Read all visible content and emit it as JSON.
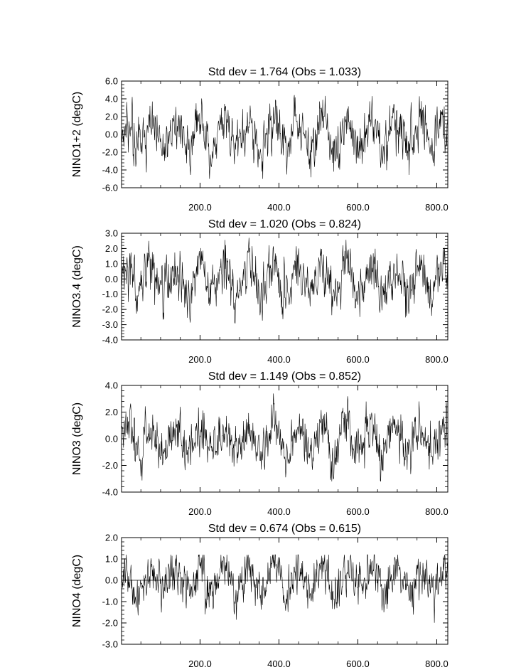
{
  "chart_data": [
    {
      "type": "line",
      "title": "Std dev = 1.764 (Obs = 1.033)",
      "ylabel": "NINO1+2 (degC)",
      "xlabel": "",
      "xlim": [
        1,
        828
      ],
      "ylim": [
        -6.0,
        6.0
      ],
      "x_ticks": [
        "200.0",
        "400.0",
        "600.0",
        "800.0"
      ],
      "y_ticks": [
        "6.0",
        "4.0",
        "2.0",
        "0.0",
        "-2.0",
        "-4.0",
        "-6.0"
      ],
      "series": [
        {
          "std_dev": 1.764,
          "obs_std_dev": 1.033,
          "length": 828,
          "min": -5.0,
          "max": 4.9
        }
      ],
      "zero_line": false
    },
    {
      "type": "line",
      "title": "Std dev = 1.020 (Obs = 0.824)",
      "ylabel": "NINO3.4 (degC)",
      "xlabel": "",
      "xlim": [
        1,
        828
      ],
      "ylim": [
        -4.0,
        3.0
      ],
      "x_ticks": [
        "200.0",
        "400.0",
        "600.0",
        "800.0"
      ],
      "y_ticks": [
        "3.0",
        "2.0",
        "1.0",
        "0.0",
        "-1.0",
        "-2.0",
        "-3.0",
        "-4.0"
      ],
      "series": [
        {
          "std_dev": 1.02,
          "obs_std_dev": 0.824,
          "length": 828,
          "min": -3.0,
          "max": 2.7
        }
      ],
      "zero_line": false
    },
    {
      "type": "line",
      "title": "Std dev = 1.149 (Obs = 0.852)",
      "ylabel": "NINO3 (degC)",
      "xlabel": "",
      "xlim": [
        1,
        828
      ],
      "ylim": [
        -4.0,
        4.0
      ],
      "x_ticks": [
        "200.0",
        "400.0",
        "600.0",
        "800.0"
      ],
      "y_ticks": [
        "4.0",
        "2.0",
        "0.0",
        "-2.0",
        "-4.0"
      ],
      "series": [
        {
          "std_dev": 1.149,
          "obs_std_dev": 0.852,
          "length": 828,
          "min": -3.2,
          "max": 3.4
        }
      ],
      "zero_line": false
    },
    {
      "type": "line",
      "title": "Std dev = 0.674 (Obs = 0.615)",
      "ylabel": "NINO4 (degC)",
      "xlabel": "",
      "xlim": [
        1,
        828
      ],
      "ylim": [
        -3.0,
        2.0
      ],
      "x_ticks": [
        "200.0",
        "400.0",
        "600.0",
        "800.0"
      ],
      "y_ticks": [
        "2.0",
        "1.0",
        "0.0",
        "-1.0",
        "-2.0",
        "-3.0"
      ],
      "series": [
        {
          "std_dev": 0.674,
          "obs_std_dev": 0.615,
          "length": 828,
          "min": -2.2,
          "max": 1.2
        }
      ],
      "zero_line": true
    }
  ]
}
